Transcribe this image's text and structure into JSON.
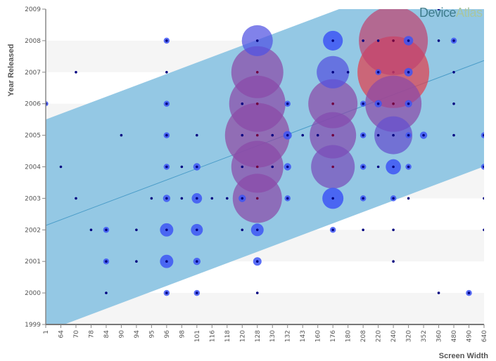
{
  "logo": {
    "part1": "Device",
    "part2": "Atlas"
  },
  "chart_data": {
    "type": "scatter",
    "subtype": "bubble",
    "xlabel": "Screen Width",
    "ylabel": "Year Released",
    "categories": [
      "1",
      "64",
      "70",
      "78",
      "84",
      "90",
      "94",
      "95",
      "96",
      "98",
      "101",
      "116",
      "118",
      "120",
      "128",
      "130",
      "132",
      "143",
      "160",
      "176",
      "180",
      "208",
      "220",
      "240",
      "320",
      "352",
      "360",
      "480",
      "490",
      "640"
    ],
    "yticks": [
      1999,
      2000,
      2001,
      2002,
      2003,
      2004,
      2005,
      2006,
      2007,
      2008,
      2009
    ],
    "ylim": [
      1999,
      2009
    ],
    "trend": {
      "start_year": 2002.14,
      "end_year": 2007.37,
      "band_halfwidth_years": 3.36
    },
    "colors": {
      "band": "#94c8e4",
      "trend": "#4a9cc8",
      "small": "#3d55f5",
      "mid": "#8a4aa8",
      "large": "#e0404e",
      "dot": "#000080"
    },
    "points": [
      [
        "1",
        2006,
        1.5
      ],
      [
        "64",
        2004,
        1
      ],
      [
        "70",
        2007,
        1
      ],
      [
        "70",
        2003,
        1
      ],
      [
        "78",
        2002,
        1
      ],
      [
        "84",
        2002,
        2
      ],
      [
        "84",
        2001,
        2
      ],
      [
        "84",
        2000,
        1
      ],
      [
        "90",
        2005,
        1
      ],
      [
        "94",
        2002,
        1
      ],
      [
        "94",
        2001,
        1
      ],
      [
        "95",
        2003,
        1
      ],
      [
        "96",
        2008,
        2
      ],
      [
        "96",
        2007,
        1
      ],
      [
        "96",
        2006,
        2
      ],
      [
        "96",
        2005,
        2
      ],
      [
        "96",
        2004,
        2
      ],
      [
        "96",
        2003,
        3
      ],
      [
        "96",
        2002,
        10
      ],
      [
        "96",
        2001,
        10
      ],
      [
        "96",
        2000,
        2
      ],
      [
        "98",
        2004,
        1
      ],
      [
        "98",
        2003,
        1
      ],
      [
        "101",
        2005,
        1
      ],
      [
        "101",
        2004,
        3
      ],
      [
        "101",
        2003,
        6
      ],
      [
        "101",
        2002,
        8
      ],
      [
        "101",
        2001,
        3
      ],
      [
        "101",
        2000,
        2
      ],
      [
        "116",
        2003,
        1
      ],
      [
        "118",
        2003,
        1
      ],
      [
        "120",
        2006,
        1
      ],
      [
        "120",
        2005,
        1
      ],
      [
        "120",
        2004,
        1
      ],
      [
        "120",
        2003,
        3
      ],
      [
        "120",
        2002,
        1
      ],
      [
        "128",
        2008,
        54
      ],
      [
        "128",
        2007,
        152
      ],
      [
        "128",
        2006,
        178
      ],
      [
        "128",
        2005,
        235
      ],
      [
        "128",
        2004,
        152
      ],
      [
        "128",
        2003,
        136
      ],
      [
        "128",
        2002,
        9
      ],
      [
        "128",
        2001,
        4
      ],
      [
        "128",
        2000,
        1
      ],
      [
        "130",
        2005,
        1
      ],
      [
        "130",
        2004,
        1
      ],
      [
        "132",
        2006,
        2
      ],
      [
        "132",
        2005,
        4
      ],
      [
        "132",
        2004,
        3
      ],
      [
        "132",
        2003,
        2
      ],
      [
        "143",
        2005,
        1
      ],
      [
        "160",
        2005,
        1
      ],
      [
        "176",
        2008,
        22
      ],
      [
        "176",
        2007,
        59
      ],
      [
        "176",
        2006,
        136
      ],
      [
        "176",
        2005,
        121
      ],
      [
        "176",
        2004,
        107
      ],
      [
        "176",
        2003,
        25
      ],
      [
        "176",
        2002,
        2
      ],
      [
        "180",
        2007,
        1
      ],
      [
        "208",
        2008,
        1
      ],
      [
        "208",
        2006,
        2
      ],
      [
        "208",
        2005,
        2
      ],
      [
        "208",
        2004,
        2
      ],
      [
        "208",
        2003,
        2
      ],
      [
        "208",
        2002,
        1
      ],
      [
        "220",
        2008,
        1
      ],
      [
        "220",
        2007,
        2
      ],
      [
        "220",
        2006,
        3
      ],
      [
        "220",
        2005,
        1
      ],
      [
        "220",
        2004,
        1
      ],
      [
        "240",
        2008,
        267
      ],
      [
        "240",
        2007,
        289
      ],
      [
        "240",
        2006,
        178
      ],
      [
        "240",
        2005,
        81
      ],
      [
        "240",
        2004,
        13
      ],
      [
        "240",
        2003,
        2
      ],
      [
        "240",
        2002,
        1
      ],
      [
        "240",
        2001,
        1
      ],
      [
        "320",
        2008,
        5
      ],
      [
        "320",
        2007,
        4
      ],
      [
        "320",
        2006,
        3
      ],
      [
        "320",
        2005,
        2
      ],
      [
        "320",
        2004,
        2
      ],
      [
        "320",
        2003,
        1
      ],
      [
        "352",
        2005,
        3
      ],
      [
        "360",
        2009,
        1
      ],
      [
        "360",
        2008,
        1
      ],
      [
        "360",
        2000,
        1
      ],
      [
        "480",
        2008,
        2
      ],
      [
        "480",
        2007,
        1
      ],
      [
        "480",
        2006,
        1
      ],
      [
        "480",
        2005,
        1
      ],
      [
        "490",
        2000,
        2
      ],
      [
        "640",
        2005,
        2
      ],
      [
        "640",
        2004,
        2
      ],
      [
        "640",
        2003,
        1
      ],
      [
        "640",
        2002,
        1
      ]
    ]
  }
}
